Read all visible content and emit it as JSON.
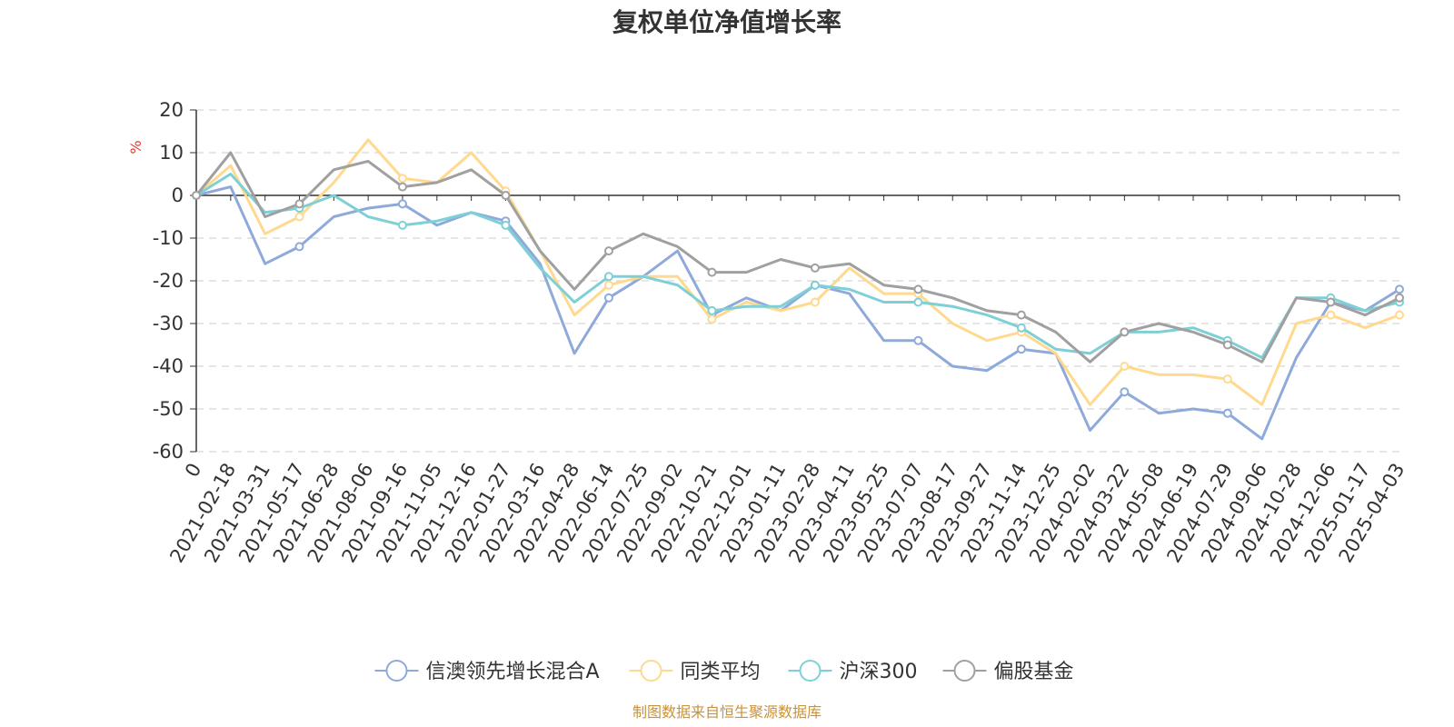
{
  "chart_data": {
    "type": "line",
    "title": "复权单位净值增长率",
    "ylabel": "%",
    "xlabel": "",
    "ylim": [
      -60,
      20
    ],
    "yticks": [
      20,
      10,
      0,
      -10,
      -20,
      -30,
      -40,
      -50,
      -60
    ],
    "grid": true,
    "legend_position": "bottom",
    "x": [
      "0",
      "2021-02-18",
      "2021-03-31",
      "2021-05-17",
      "2021-06-28",
      "2021-08-06",
      "2021-09-16",
      "2021-11-05",
      "2021-12-16",
      "2022-01-27",
      "2022-03-16",
      "2022-04-28",
      "2022-06-14",
      "2022-07-25",
      "2022-09-02",
      "2022-10-21",
      "2022-12-01",
      "2023-01-11",
      "2023-02-28",
      "2023-04-11",
      "2023-05-25",
      "2023-07-07",
      "2023-08-17",
      "2023-09-27",
      "2023-11-14",
      "2023-12-25",
      "2024-02-02",
      "2024-03-22",
      "2024-05-08",
      "2024-06-19",
      "2024-07-29",
      "2024-09-06",
      "2024-10-28",
      "2024-12-06",
      "2025-01-17",
      "2025-04-03"
    ],
    "series": [
      {
        "name": "信澳领先增长混合A",
        "color": "#8eaadb",
        "values": [
          0,
          2,
          -16,
          -12,
          -5,
          -3,
          -2,
          -7,
          -4,
          -6,
          -16,
          -37,
          -24,
          -19,
          -13,
          -28,
          -24,
          -27,
          -21,
          -23,
          -34,
          -34,
          -40,
          -41,
          -36,
          -37,
          -55,
          -46,
          -51,
          -50,
          -51,
          -57,
          -38,
          -25,
          -27,
          -22
        ]
      },
      {
        "name": "同类平均",
        "color": "#ffd98e",
        "values": [
          0,
          7,
          -9,
          -5,
          3,
          13,
          4,
          3,
          10,
          1,
          -13,
          -28,
          -21,
          -19,
          -19,
          -29,
          -25,
          -27,
          -25,
          -17,
          -23,
          -23,
          -30,
          -34,
          -32,
          -37,
          -49,
          -40,
          -42,
          -42,
          -43,
          -49,
          -30,
          -28,
          -31,
          -28
        ]
      },
      {
        "name": "沪深300",
        "color": "#7fd0d6",
        "values": [
          0,
          5,
          -4,
          -3,
          0,
          -5,
          -7,
          -6,
          -4,
          -7,
          -17,
          -25,
          -19,
          -19,
          -21,
          -27,
          -26,
          -26,
          -21,
          -22,
          -25,
          -25,
          -26,
          -28,
          -31,
          -36,
          -37,
          -32,
          -32,
          -31,
          -34,
          -38,
          -24,
          -24,
          -27,
          -25
        ]
      },
      {
        "name": "偏股基金",
        "color": "#a0a0a0",
        "values": [
          0,
          10,
          -5,
          -2,
          6,
          8,
          2,
          3,
          6,
          0,
          -13,
          -22,
          -13,
          -9,
          -12,
          -18,
          -18,
          -15,
          -17,
          -16,
          -21,
          -22,
          -24,
          -27,
          -28,
          -32,
          -39,
          -32,
          -30,
          -32,
          -35,
          -39,
          -24,
          -25,
          -28,
          -24
        ]
      }
    ]
  },
  "source": "制图数据来自恒生聚源数据库"
}
